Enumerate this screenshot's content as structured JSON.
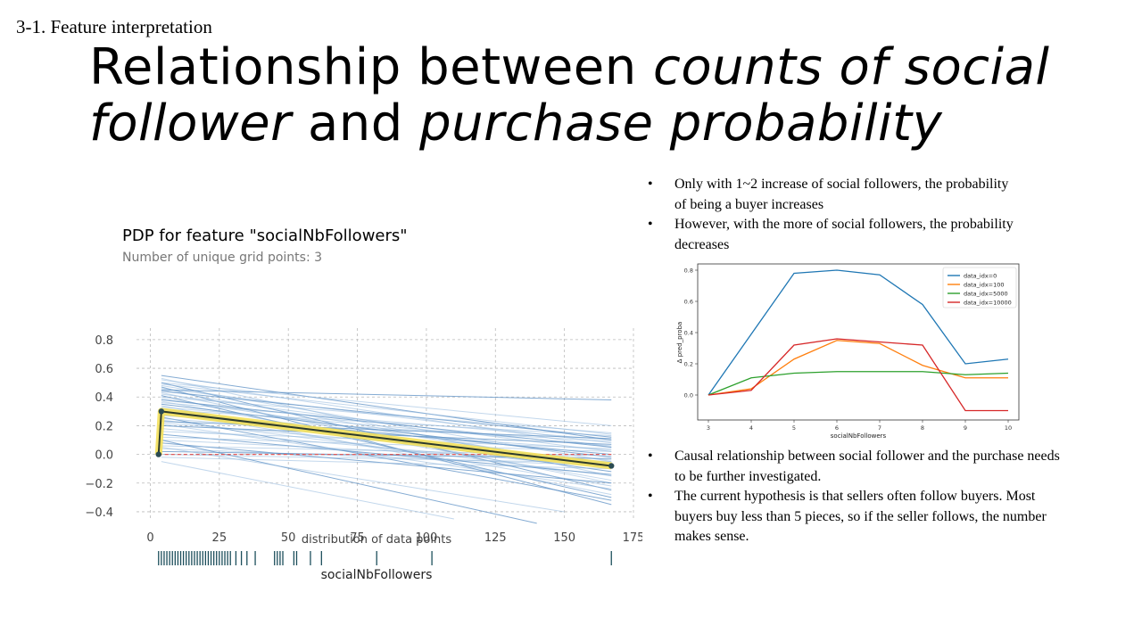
{
  "slide": {
    "section": "3-1. Feature interpretation",
    "title_parts": {
      "p1": "Relationship between ",
      "p2": "counts of social",
      "p3": "follower",
      "p4": " and ",
      "p5": "purchase probability"
    },
    "bullets_top": [
      "Only with 1~2  increase of social followers, the probability of being a buyer increases",
      "However, with the more of social followers, the probability decreases"
    ],
    "bullets_bottom": [
      "Causal relationship between social follower and the purchase needs to be further investigated.",
      "The current hypothesis is that sellers  often follow buyers. Most buyers buy less  than 5 pieces, so if  the seller  follows, the number makes sense."
    ]
  },
  "chart_data": [
    {
      "type": "line",
      "title": "PDP for feature \"socialNbFollowers\"",
      "subtitle": "Number of unique grid points: 3",
      "xlabel": "socialNbFollowers",
      "dist_label": "distribution of data points",
      "xlim": [
        -5,
        175
      ],
      "ylim": [
        -0.45,
        0.88
      ],
      "xticks": [
        0,
        25,
        50,
        75,
        100,
        125,
        150,
        175
      ],
      "yticks": [
        -0.4,
        -0.2,
        0.0,
        0.2,
        0.4,
        0.6,
        0.8
      ],
      "ytick_labels": [
        "−0.4",
        "−0.2",
        "0.0",
        "0.2",
        "0.4",
        "0.6",
        "0.8"
      ],
      "grid": true,
      "pdp_line": {
        "x": [
          3,
          4,
          167
        ],
        "y": [
          0.0,
          0.3,
          -0.08
        ]
      },
      "reference_y": 0.0,
      "rug_x": [
        3,
        4,
        5,
        6,
        7,
        8,
        9,
        10,
        11,
        12,
        13,
        14,
        15,
        16,
        17,
        18,
        19,
        20,
        21,
        22,
        23,
        24,
        25,
        26,
        27,
        28,
        29,
        31,
        33,
        35,
        38,
        45,
        46,
        47,
        48,
        52,
        53,
        58,
        62,
        82,
        102,
        167
      ],
      "ice_lines": [
        {
          "x": [
            4,
            167
          ],
          "y": [
            0.55,
            0.1
          ]
        },
        {
          "x": [
            4,
            167
          ],
          "y": [
            0.53,
            -0.15
          ]
        },
        {
          "x": [
            4,
            167
          ],
          "y": [
            0.52,
            0.05
          ]
        },
        {
          "x": [
            4,
            167
          ],
          "y": [
            0.5,
            -0.25
          ]
        },
        {
          "x": [
            4,
            167
          ],
          "y": [
            0.49,
            0.14
          ]
        },
        {
          "x": [
            4,
            167
          ],
          "y": [
            0.48,
            -0.05
          ]
        },
        {
          "x": [
            4,
            167
          ],
          "y": [
            0.47,
            -0.35
          ]
        },
        {
          "x": [
            4,
            167
          ],
          "y": [
            0.46,
            0.08
          ]
        },
        {
          "x": [
            4,
            167
          ],
          "y": [
            0.45,
            -0.1
          ]
        },
        {
          "x": [
            4,
            167
          ],
          "y": [
            0.44,
            0.12
          ]
        },
        {
          "x": [
            4,
            167
          ],
          "y": [
            0.43,
            -0.2
          ]
        },
        {
          "x": [
            4,
            167
          ],
          "y": [
            0.42,
            0.02
          ]
        },
        {
          "x": [
            4,
            167
          ],
          "y": [
            0.41,
            -0.3
          ]
        },
        {
          "x": [
            4,
            167
          ],
          "y": [
            0.4,
            0.15
          ]
        },
        {
          "x": [
            4,
            167
          ],
          "y": [
            0.39,
            -0.08
          ]
        },
        {
          "x": [
            4,
            167
          ],
          "y": [
            0.38,
            0.05
          ]
        },
        {
          "x": [
            4,
            167
          ],
          "y": [
            0.37,
            -0.18
          ]
        },
        {
          "x": [
            4,
            167
          ],
          "y": [
            0.36,
            0.1
          ]
        },
        {
          "x": [
            4,
            167
          ],
          "y": [
            0.35,
            -0.02
          ]
        },
        {
          "x": [
            4,
            167
          ],
          "y": [
            0.34,
            -0.28
          ]
        },
        {
          "x": [
            4,
            167
          ],
          "y": [
            0.33,
            0.06
          ]
        },
        {
          "x": [
            4,
            167
          ],
          "y": [
            0.32,
            -0.12
          ]
        },
        {
          "x": [
            4,
            167
          ],
          "y": [
            0.31,
            0.13
          ]
        },
        {
          "x": [
            4,
            167
          ],
          "y": [
            0.3,
            -0.22
          ]
        },
        {
          "x": [
            4,
            167
          ],
          "y": [
            0.29,
            0.0
          ]
        },
        {
          "x": [
            4,
            167
          ],
          "y": [
            0.28,
            -0.06
          ]
        },
        {
          "x": [
            4,
            167
          ],
          "y": [
            0.27,
            0.09
          ]
        },
        {
          "x": [
            4,
            167
          ],
          "y": [
            0.26,
            -0.32
          ]
        },
        {
          "x": [
            4,
            167
          ],
          "y": [
            0.25,
            0.03
          ]
        },
        {
          "x": [
            4,
            167
          ],
          "y": [
            0.24,
            -0.15
          ]
        },
        {
          "x": [
            4,
            167
          ],
          "y": [
            0.23,
            0.11
          ]
        },
        {
          "x": [
            4,
            167
          ],
          "y": [
            0.22,
            -0.04
          ]
        },
        {
          "x": [
            4,
            167
          ],
          "y": [
            0.21,
            -0.24
          ]
        },
        {
          "x": [
            4,
            167
          ],
          "y": [
            0.2,
            0.07
          ]
        },
        {
          "x": [
            4,
            167
          ],
          "y": [
            0.18,
            -0.09
          ]
        },
        {
          "x": [
            4,
            167
          ],
          "y": [
            0.16,
            0.04
          ]
        },
        {
          "x": [
            4,
            167
          ],
          "y": [
            0.14,
            -0.14
          ]
        },
        {
          "x": [
            4,
            167
          ],
          "y": [
            0.12,
            0.02
          ]
        },
        {
          "x": [
            4,
            167
          ],
          "y": [
            0.1,
            -0.05
          ]
        },
        {
          "x": [
            4,
            167
          ],
          "y": [
            0.08,
            -0.2
          ]
        },
        {
          "x": [
            4,
            167
          ],
          "y": [
            0.06,
            -0.01
          ]
        },
        {
          "x": [
            4,
            167
          ],
          "y": [
            0.04,
            -0.08
          ]
        },
        {
          "x": [
            4,
            167
          ],
          "y": [
            0.02,
            -0.03
          ]
        },
        {
          "x": [
            4,
            167
          ],
          "y": [
            0.0,
            -0.06
          ]
        },
        {
          "x": [
            4,
            167
          ],
          "y": [
            -0.02,
            -0.1
          ]
        },
        {
          "x": [
            4,
            140
          ],
          "y": [
            0.1,
            -0.48
          ]
        },
        {
          "x": [
            4,
            150
          ],
          "y": [
            0.05,
            -0.4
          ]
        },
        {
          "x": [
            4,
            110
          ],
          "y": [
            -0.05,
            -0.45
          ]
        },
        {
          "x": [
            4,
            167
          ],
          "y": [
            0.45,
            0.38
          ]
        },
        {
          "x": [
            4,
            167
          ],
          "y": [
            0.5,
            0.2
          ]
        }
      ]
    },
    {
      "type": "line",
      "xlabel": "socialNbFollowers",
      "ylabel": "Δ pred_proba",
      "x": [
        3,
        4,
        5,
        6,
        7,
        8,
        9,
        10
      ],
      "xlim": [
        2.75,
        10.25
      ],
      "ylim": [
        -0.16,
        0.84
      ],
      "xticks": [
        3,
        4,
        5,
        6,
        7,
        8,
        9,
        10
      ],
      "yticks": [
        0.0,
        0.2,
        0.4,
        0.6,
        0.8
      ],
      "ytick_labels": [
        "0.0",
        "0.2",
        "0.4",
        "0.6",
        "0.8"
      ],
      "legend": "top-right",
      "series": [
        {
          "name": "data_idx=0",
          "color": "#1f77b4",
          "values": [
            0.0,
            0.39,
            0.78,
            0.8,
            0.77,
            0.58,
            0.2,
            0.23
          ]
        },
        {
          "name": "data_idx=100",
          "color": "#ff7f0e",
          "values": [
            0.0,
            0.04,
            0.23,
            0.35,
            0.33,
            0.19,
            0.11,
            0.11
          ]
        },
        {
          "name": "data_idx=5000",
          "color": "#2ca02c",
          "values": [
            0.0,
            0.11,
            0.14,
            0.15,
            0.15,
            0.15,
            0.13,
            0.14
          ]
        },
        {
          "name": "data_idx=10000",
          "color": "#d62728",
          "values": [
            0.0,
            0.03,
            0.32,
            0.36,
            0.34,
            0.32,
            -0.1,
            -0.1
          ]
        }
      ]
    }
  ]
}
